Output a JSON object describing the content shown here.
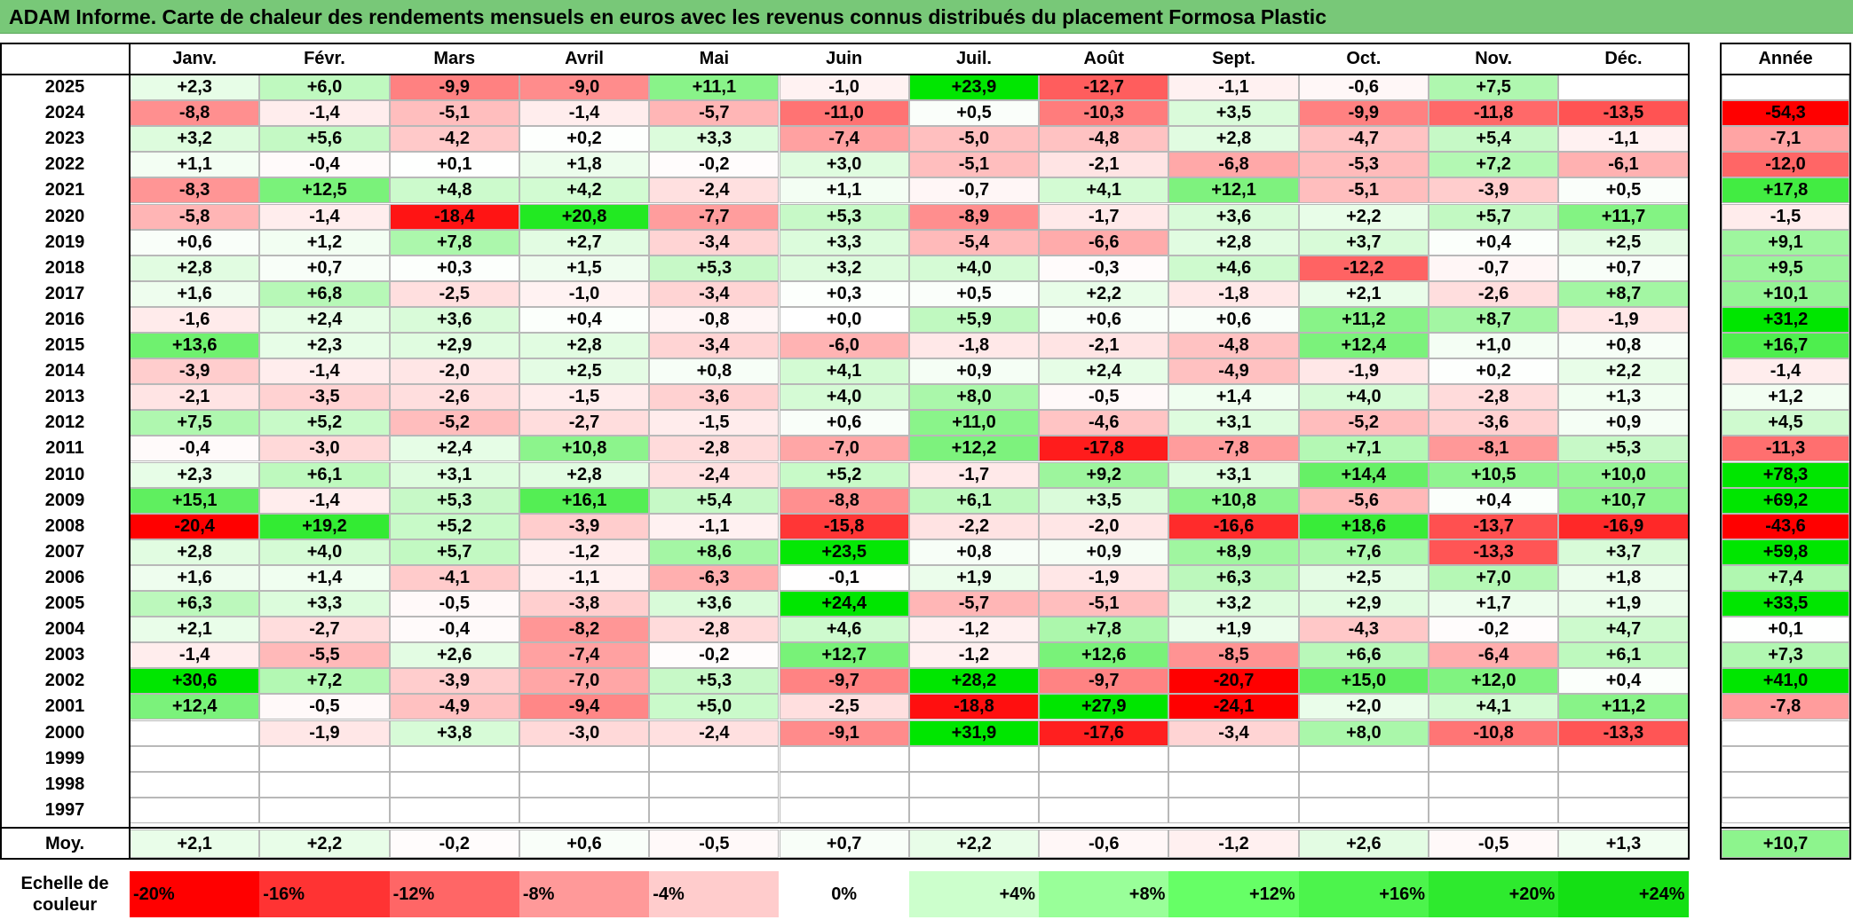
{
  "title": "ADAM Informe. Carte de chaleur des rendements mensuels en euros avec les revenus connus distribués du placement Formosa Plastic",
  "chart_data": {
    "type": "heatmap",
    "months": [
      "Janv.",
      "Févr.",
      "Mars",
      "Avril",
      "Mai",
      "Juin",
      "Juil.",
      "Août",
      "Sept.",
      "Oct.",
      "Nov.",
      "Déc."
    ],
    "year_column_label": "Année",
    "years": [
      "2025",
      "2024",
      "2023",
      "2022",
      "2021",
      "2020",
      "2019",
      "2018",
      "2017",
      "2016",
      "2015",
      "2014",
      "2013",
      "2012",
      "2011",
      "2010",
      "2009",
      "2008",
      "2007",
      "2006",
      "2005",
      "2004",
      "2003",
      "2002",
      "2001",
      "2000",
      "1999",
      "1998",
      "1997"
    ],
    "values": [
      [
        2.3,
        6.0,
        -9.9,
        -9.0,
        11.1,
        -1.0,
        23.9,
        -12.7,
        -1.1,
        -0.6,
        7.5,
        null
      ],
      [
        -8.8,
        -1.4,
        -5.1,
        -1.4,
        -5.7,
        -11.0,
        0.5,
        -10.3,
        3.5,
        -9.9,
        -11.8,
        -13.5
      ],
      [
        3.2,
        5.6,
        -4.2,
        0.2,
        3.3,
        -7.4,
        -5.0,
        -4.8,
        2.8,
        -4.7,
        5.4,
        -1.1
      ],
      [
        1.1,
        -0.4,
        0.1,
        1.8,
        -0.2,
        3.0,
        -5.1,
        -2.1,
        -6.8,
        -5.3,
        7.2,
        -6.1
      ],
      [
        -8.3,
        12.5,
        4.8,
        4.2,
        -2.4,
        1.1,
        -0.7,
        4.1,
        12.1,
        -5.1,
        -3.9,
        0.5
      ],
      [
        -5.8,
        -1.4,
        -18.4,
        20.8,
        -7.7,
        5.3,
        -8.9,
        -1.7,
        3.6,
        2.2,
        5.7,
        11.7
      ],
      [
        0.6,
        1.2,
        7.8,
        2.7,
        -3.4,
        3.3,
        -5.4,
        -6.6,
        2.8,
        3.7,
        0.4,
        2.5
      ],
      [
        2.8,
        0.7,
        0.3,
        1.5,
        5.3,
        3.2,
        4.0,
        -0.3,
        4.6,
        -12.2,
        -0.7,
        0.7
      ],
      [
        1.6,
        6.8,
        -2.5,
        -1.0,
        -3.4,
        0.3,
        0.5,
        2.2,
        -1.8,
        2.1,
        -2.6,
        8.7
      ],
      [
        -1.6,
        2.4,
        3.6,
        0.4,
        -0.8,
        0.0,
        5.9,
        0.6,
        0.6,
        11.2,
        8.7,
        -1.9
      ],
      [
        13.6,
        2.3,
        2.9,
        2.8,
        -3.4,
        -6.0,
        -1.8,
        -2.1,
        -4.8,
        12.4,
        1.0,
        0.8
      ],
      [
        -3.9,
        -1.4,
        -2.0,
        2.5,
        0.8,
        4.1,
        0.9,
        2.4,
        -4.9,
        -1.9,
        0.2,
        2.2
      ],
      [
        -2.1,
        -3.5,
        -2.6,
        -1.5,
        -3.6,
        4.0,
        8.0,
        -0.5,
        1.4,
        4.0,
        -2.8,
        1.3
      ],
      [
        7.5,
        5.2,
        -5.2,
        -2.7,
        -1.5,
        0.6,
        11.0,
        -4.6,
        3.1,
        -5.2,
        -3.6,
        0.9
      ],
      [
        -0.4,
        -3.0,
        2.4,
        10.8,
        -2.8,
        -7.0,
        12.2,
        -17.8,
        -7.8,
        7.1,
        -8.1,
        5.3
      ],
      [
        2.3,
        6.1,
        3.1,
        2.8,
        -2.4,
        5.2,
        -1.7,
        9.2,
        3.1,
        14.4,
        10.5,
        10.0
      ],
      [
        15.1,
        -1.4,
        5.3,
        16.1,
        5.4,
        -8.8,
        6.1,
        3.5,
        10.8,
        -5.6,
        0.4,
        10.7
      ],
      [
        -20.4,
        19.2,
        5.2,
        -3.9,
        -1.1,
        -15.8,
        -2.2,
        -2.0,
        -16.6,
        18.6,
        -13.7,
        -16.9
      ],
      [
        2.8,
        4.0,
        5.7,
        -1.2,
        8.6,
        23.5,
        0.8,
        0.9,
        8.9,
        7.6,
        -13.3,
        3.7
      ],
      [
        1.6,
        1.4,
        -4.1,
        -1.1,
        -6.3,
        -0.1,
        1.9,
        -1.9,
        6.3,
        2.5,
        7.0,
        1.8
      ],
      [
        6.3,
        3.3,
        -0.5,
        -3.8,
        3.6,
        24.4,
        -5.7,
        -5.1,
        3.2,
        2.9,
        1.7,
        1.9
      ],
      [
        2.1,
        -2.7,
        -0.4,
        -8.2,
        -2.8,
        4.6,
        -1.2,
        7.8,
        1.9,
        -4.3,
        -0.2,
        4.7
      ],
      [
        -1.4,
        -5.5,
        2.6,
        -7.4,
        -0.2,
        12.7,
        -1.2,
        12.6,
        -8.5,
        6.6,
        -6.4,
        6.1
      ],
      [
        30.6,
        7.2,
        -3.9,
        -7.0,
        5.3,
        -9.7,
        28.2,
        -9.7,
        -20.7,
        15.0,
        12.0,
        0.4
      ],
      [
        12.4,
        -0.5,
        -4.9,
        -9.4,
        5.0,
        -2.5,
        -18.8,
        27.9,
        -24.1,
        2.0,
        4.1,
        11.2
      ],
      [
        null,
        -1.9,
        3.8,
        -3.0,
        -2.4,
        -9.1,
        31.9,
        -17.6,
        -3.4,
        8.0,
        -10.8,
        -13.3
      ],
      [
        null,
        null,
        null,
        null,
        null,
        null,
        null,
        null,
        null,
        null,
        null,
        null
      ],
      [
        null,
        null,
        null,
        null,
        null,
        null,
        null,
        null,
        null,
        null,
        null,
        null
      ],
      [
        null,
        null,
        null,
        null,
        null,
        null,
        null,
        null,
        null,
        null,
        null,
        null
      ]
    ],
    "year_values": [
      null,
      -54.3,
      -7.1,
      -12.0,
      17.8,
      -1.5,
      9.1,
      9.5,
      10.1,
      31.2,
      16.7,
      -1.4,
      1.2,
      4.5,
      -11.3,
      78.3,
      69.2,
      -43.6,
      59.8,
      7.4,
      33.5,
      0.1,
      7.3,
      41.0,
      -7.8,
      null,
      null,
      null,
      null
    ],
    "average_label": "Moy.",
    "average_values": [
      2.1,
      2.2,
      -0.2,
      0.6,
      -0.5,
      0.7,
      2.2,
      -0.6,
      -1.2,
      2.6,
      -0.5,
      1.3
    ],
    "average_year": 10.7,
    "color_scale": {
      "label": "Echelle de couleur",
      "stops": [
        {
          "label": "-20%",
          "value": -20,
          "color": "#ff0000"
        },
        {
          "label": "-16%",
          "value": -16,
          "color": "#ff3333"
        },
        {
          "label": "-12%",
          "value": -12,
          "color": "#ff6666"
        },
        {
          "label": "-8%",
          "value": -8,
          "color": "#ff9999"
        },
        {
          "label": "-4%",
          "value": -4,
          "color": "#ffcccc"
        },
        {
          "label": "0%",
          "value": 0,
          "color": "#ffffff"
        },
        {
          "label": "+4%",
          "value": 4,
          "color": "#ccffcc"
        },
        {
          "label": "+8%",
          "value": 8,
          "color": "#99ff99"
        },
        {
          "label": "+12%",
          "value": 12,
          "color": "#66ff66"
        },
        {
          "label": "+16%",
          "value": 16,
          "color": "#4cf44c"
        },
        {
          "label": "+20%",
          "value": 20,
          "color": "#2eea2e"
        },
        {
          "label": "+24%",
          "value": 24,
          "color": "#14e014"
        }
      ]
    }
  }
}
